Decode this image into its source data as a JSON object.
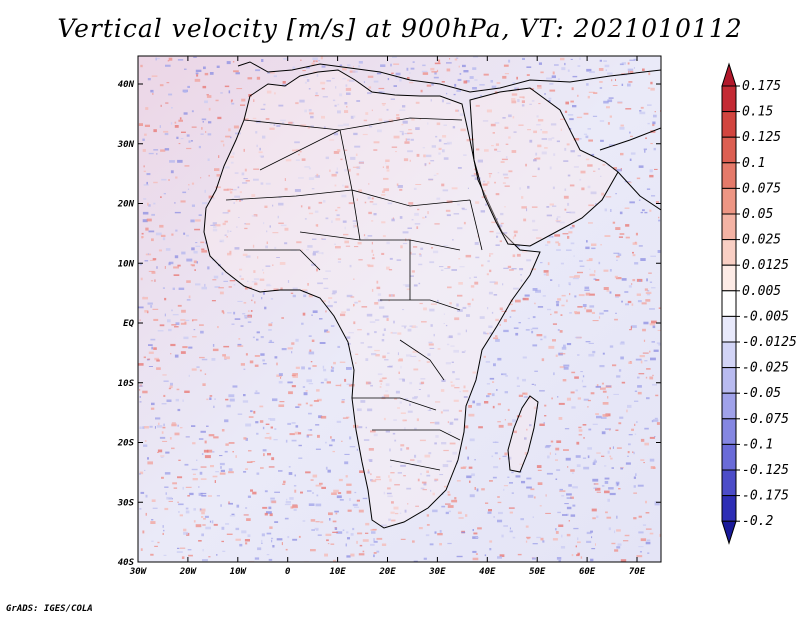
{
  "title": "Vertical velocity [m/s] at 900hPa, VT: 2021010112",
  "credit": "GrADS: IGES/COLA",
  "map": {
    "lon_range": [
      -30,
      75
    ],
    "lat_range": [
      -40,
      45
    ],
    "lat_ticks": [
      "40N",
      "30N",
      "20N",
      "10N",
      "EQ",
      "10S",
      "20S",
      "30S",
      "40S"
    ],
    "lon_ticks": [
      "30W",
      "20W",
      "10W",
      "0",
      "10E",
      "20E",
      "30E",
      "40E",
      "50E",
      "60E",
      "70E"
    ]
  },
  "colorbar": {
    "labels": [
      "0.175",
      "0.15",
      "0.125",
      "0.1",
      "0.075",
      "0.05",
      "0.025",
      "0.0125",
      "0.005",
      "-0.005",
      "-0.0125",
      "-0.025",
      "-0.05",
      "-0.075",
      "-0.1",
      "-0.125",
      "-0.175",
      "-0.2"
    ],
    "colors": [
      "#b2182b",
      "#c42a34",
      "#d2453f",
      "#dc5f52",
      "#e57a6a",
      "#ee9684",
      "#f4b3a4",
      "#f9cfc4",
      "#fdebe6",
      "#ffffff",
      "#e8e9fb",
      "#d2d4f6",
      "#b9bbf0",
      "#a0a2ea",
      "#8587e2",
      "#6a6bd8",
      "#4c4cc8",
      "#2e2eb5",
      "#1a1a9a"
    ]
  }
}
